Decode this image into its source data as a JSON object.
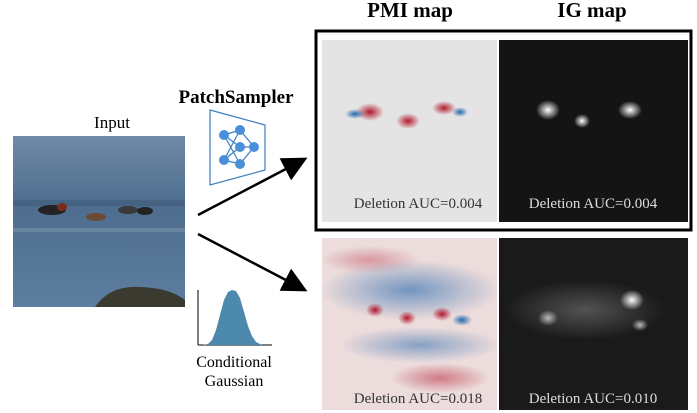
{
  "header": {
    "pmi_title": "PMI map",
    "ig_title": "IG map"
  },
  "input": {
    "label": "Input"
  },
  "sampler": {
    "label": "PatchSampler"
  },
  "gaussian": {
    "label_lines": [
      "Conditional",
      "Gaussian"
    ]
  },
  "panels": [
    {
      "caption": "Deletion AUC=0.004"
    },
    {
      "caption": "Deletion AUC=0.004"
    },
    {
      "caption": "Deletion AUC=0.018"
    },
    {
      "caption": "Deletion AUC=0.010"
    }
  ]
}
